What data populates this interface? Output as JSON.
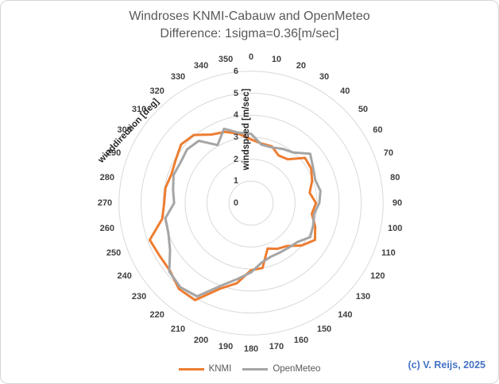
{
  "header": {
    "title": "Windroses KNMI-Cabauw and OpenMeteo",
    "subtitle": "Difference: 1sigma=0.36[m/sec]"
  },
  "footer": {
    "credit": "(c) V. Reijs, 2025",
    "credit_color": "#4472C4"
  },
  "chart_data": {
    "type": "radar",
    "title": "Windroses KNMI-Cabauw and OpenMeteo",
    "subtitle": "Difference: 1sigma=0.36[m/sec]",
    "angular_axis_label": "winddirection [deg]",
    "radial_axis_label": "windspeed [m/sec]",
    "grid": "concentric-circles",
    "grid_color": "#D9D9D9",
    "legend_position": "bottom",
    "radial_range": [
      0,
      6
    ],
    "radial_ticks": [
      0,
      1,
      2,
      3,
      4,
      5,
      6
    ],
    "directions_deg": [
      0,
      10,
      20,
      30,
      40,
      50,
      60,
      70,
      80,
      90,
      100,
      110,
      120,
      130,
      140,
      150,
      160,
      170,
      180,
      190,
      200,
      210,
      220,
      230,
      240,
      250,
      260,
      270,
      280,
      290,
      300,
      310,
      320,
      330,
      340,
      350
    ],
    "series": [
      {
        "name": "KNMI",
        "color": "#ED7D31",
        "values": [
          2.9,
          2.75,
          2.75,
          2.5,
          2.6,
          3.2,
          3.15,
          2.95,
          2.7,
          2.95,
          2.8,
          3.1,
          3.35,
          3.0,
          2.55,
          2.4,
          2.2,
          3.0,
          3.05,
          3.7,
          4.15,
          5.1,
          5.1,
          4.8,
          4.8,
          4.9,
          4.1,
          3.95,
          3.95,
          3.85,
          3.95,
          4.15,
          4.05,
          3.6,
          3.45,
          3.2
        ]
      },
      {
        "name": "OpenMeteo",
        "color": "#A5A5A5",
        "values": [
          3.15,
          2.7,
          2.7,
          2.85,
          3.0,
          3.5,
          3.25,
          3.1,
          3.2,
          3.1,
          2.9,
          3.0,
          3.1,
          2.75,
          2.65,
          2.6,
          2.6,
          2.75,
          3.15,
          3.5,
          4.0,
          4.9,
          5.0,
          4.85,
          4.25,
          4.0,
          3.95,
          3.5,
          3.6,
          3.75,
          3.7,
          3.8,
          3.7,
          3.05,
          3.6,
          3.25
        ]
      }
    ]
  }
}
